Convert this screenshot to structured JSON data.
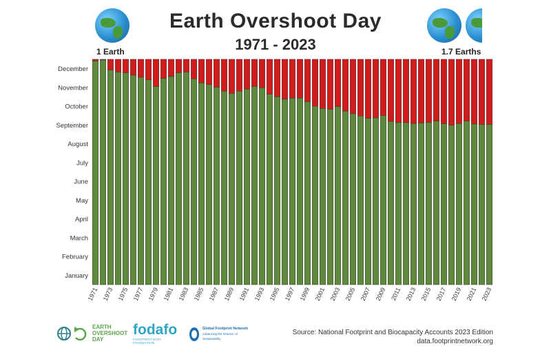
{
  "chart_data": {
    "type": "bar",
    "stacked": true,
    "title": "Earth Overshoot Day",
    "subtitle": "1971 - 2023",
    "y_months": [
      "January",
      "February",
      "March",
      "April",
      "May",
      "June",
      "July",
      "August",
      "September",
      "October",
      "November",
      "December"
    ],
    "x_tick_years": [
      1971,
      1973,
      1975,
      1977,
      1979,
      1981,
      1983,
      1985,
      1987,
      1989,
      1991,
      1993,
      1995,
      1997,
      1999,
      2001,
      2003,
      2005,
      2007,
      2009,
      2011,
      2013,
      2015,
      2017,
      2019,
      2021,
      2023
    ],
    "years": [
      1971,
      1972,
      1973,
      1974,
      1975,
      1976,
      1977,
      1978,
      1979,
      1980,
      1981,
      1982,
      1983,
      1984,
      1985,
      1986,
      1987,
      1988,
      1989,
      1990,
      1991,
      1992,
      1993,
      1994,
      1995,
      1996,
      1997,
      1998,
      1999,
      2000,
      2001,
      2002,
      2003,
      2004,
      2005,
      2006,
      2007,
      2008,
      2009,
      2010,
      2011,
      2012,
      2013,
      2014,
      2015,
      2016,
      2017,
      2018,
      2019,
      2020,
      2021,
      2022,
      2023
    ],
    "overshoot_month": [
      11.91,
      11.96,
      11.43,
      11.32,
      11.28,
      11.15,
      11.04,
      10.91,
      10.55,
      10.98,
      11.08,
      11.28,
      11.32,
      10.96,
      10.74,
      10.65,
      10.51,
      10.3,
      10.18,
      10.3,
      10.41,
      10.55,
      10.48,
      10.14,
      10.0,
      9.87,
      9.93,
      9.93,
      9.74,
      9.5,
      9.38,
      9.34,
      9.48,
      9.24,
      9.1,
      8.98,
      8.86,
      8.88,
      9.0,
      8.69,
      8.63,
      8.63,
      8.57,
      8.6,
      8.63,
      8.71,
      8.56,
      8.49,
      8.58,
      8.71,
      8.55,
      8.52,
      8.53
    ],
    "series": [
      {
        "name": "",
        "color": "#5f8a3d"
      },
      {
        "name": "",
        "color": "#d01c1c"
      }
    ],
    "left_label": "1 Earth",
    "right_label": "1.7 Earths",
    "legend": "none"
  },
  "footer": {
    "logo1_line1": "EARTH",
    "logo1_line2": "OVERSHOOT",
    "logo1_line3": "DAY",
    "logo2": "fodafo",
    "logo2_sub": "FOOTPRINT DATA FOUNDATION",
    "logo3": "Global Footprint Network",
    "logo3_sub": "Advancing the Science of Sustainability",
    "source_line1": "Source: National Footprint and Biocapacity Accounts 2023 Edition",
    "source_line2": "data.footprintnetwork.org"
  },
  "colors": {
    "green": "#5f8a3d",
    "red": "#d01c1c",
    "text": "#2b2b2b"
  },
  "icons": [
    "earth-globe-icon",
    "earth-overshoot-day-logo",
    "fodafo-logo",
    "global-footprint-network-logo"
  ]
}
